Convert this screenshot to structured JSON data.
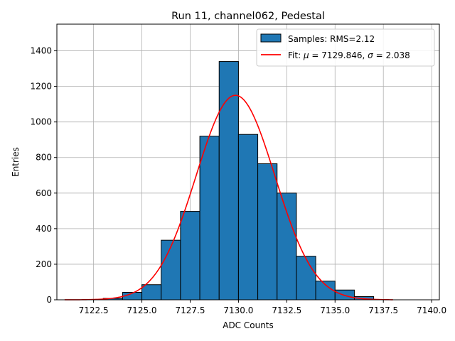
{
  "chart_data": {
    "type": "bar",
    "title": "Run 11, channel062, Pedestal",
    "xlabel": "ADC Counts",
    "ylabel": "Entries",
    "xlim": [
      7120.6,
      7140.4
    ],
    "ylim": [
      0,
      1550
    ],
    "grid": true,
    "legend_position": "top-right",
    "xticks": [
      7122.5,
      7125.0,
      7127.5,
      7130.0,
      7132.5,
      7135.0,
      7137.5,
      7140.0
    ],
    "xtick_labels": [
      "7122.5",
      "7125.0",
      "7127.5",
      "7130.0",
      "7132.5",
      "7135.0",
      "7137.5",
      "7140.0"
    ],
    "yticks": [
      0,
      200,
      400,
      600,
      800,
      1000,
      1200,
      1400
    ],
    "ytick_labels": [
      "0",
      "200",
      "400",
      "600",
      "800",
      "1000",
      "1200",
      "1400"
    ],
    "bins": {
      "edges": [
        7123,
        7124,
        7125,
        7126,
        7127,
        7128,
        7129,
        7130,
        7131,
        7132,
        7133,
        7134,
        7135,
        7136,
        7137
      ],
      "counts": [
        8,
        42,
        85,
        335,
        497,
        920,
        1340,
        930,
        765,
        600,
        245,
        105,
        55,
        18
      ]
    },
    "fit": {
      "mu": 7129.846,
      "sigma": 2.038,
      "amplitude": 1150,
      "x_range": [
        7121,
        7138
      ]
    },
    "series": [
      {
        "name": "Samples: RMS=2.12",
        "kind": "histogram",
        "color": "#1f77b4",
        "edgecolor": "#000000"
      },
      {
        "name_prefix": "Fit: ",
        "mu_symbol": "μ",
        "mu_text": " = 7129.846, ",
        "sigma_symbol": "σ",
        "sigma_text": " = 2.038",
        "kind": "line",
        "color": "#ff0000"
      }
    ],
    "colors": {
      "grid": "#b0b0b0",
      "bar": "#1f77b4",
      "fit": "#ff0000"
    }
  }
}
